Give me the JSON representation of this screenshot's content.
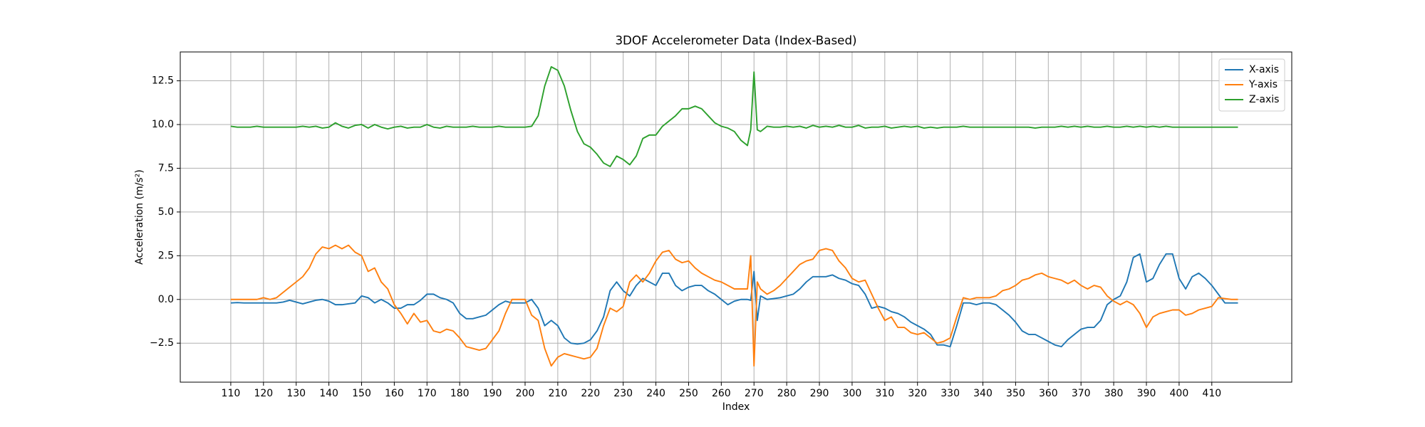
{
  "chart_data": {
    "type": "line",
    "title": "3DOF Accelerometer Data (Index-Based)",
    "x_label": "Index",
    "y_label": "Acceleration (m/s²)",
    "x": [
      110,
      112,
      114,
      116,
      118,
      120,
      122,
      124,
      126,
      128,
      130,
      132,
      134,
      136,
      138,
      140,
      142,
      144,
      146,
      148,
      150,
      152,
      154,
      156,
      158,
      160,
      162,
      164,
      166,
      168,
      170,
      172,
      174,
      176,
      178,
      180,
      182,
      184,
      186,
      188,
      190,
      192,
      194,
      196,
      198,
      200,
      202,
      204,
      206,
      208,
      210,
      212,
      214,
      216,
      218,
      220,
      222,
      224,
      226,
      228,
      230,
      232,
      234,
      236,
      238,
      240,
      242,
      244,
      246,
      248,
      250,
      252,
      254,
      256,
      258,
      260,
      262,
      264,
      266,
      268,
      269,
      270,
      271,
      272,
      274,
      276,
      278,
      280,
      282,
      284,
      286,
      288,
      290,
      292,
      294,
      296,
      298,
      300,
      302,
      304,
      306,
      308,
      310,
      312,
      314,
      316,
      318,
      320,
      322,
      324,
      326,
      328,
      330,
      332,
      334,
      336,
      338,
      340,
      342,
      344,
      346,
      348,
      350,
      352,
      354,
      356,
      358,
      360,
      362,
      364,
      366,
      368,
      370,
      372,
      374,
      376,
      378,
      380,
      382,
      384,
      386,
      388,
      390,
      392,
      394,
      396,
      398,
      400,
      402,
      404,
      406,
      408,
      410,
      412,
      414,
      416,
      418
    ],
    "series": [
      {
        "name": "X-axis",
        "color": "#1f77b4",
        "values": [
          -0.2,
          -0.18,
          -0.2,
          -0.2,
          -0.2,
          -0.2,
          -0.2,
          -0.2,
          -0.15,
          -0.05,
          -0.15,
          -0.25,
          -0.15,
          -0.05,
          0.0,
          -0.1,
          -0.3,
          -0.3,
          -0.25,
          -0.2,
          0.2,
          0.1,
          -0.2,
          0.0,
          -0.2,
          -0.5,
          -0.5,
          -0.3,
          -0.3,
          -0.05,
          0.3,
          0.3,
          0.1,
          0.0,
          -0.2,
          -0.8,
          -1.1,
          -1.1,
          -1.0,
          -0.9,
          -0.6,
          -0.3,
          -0.1,
          -0.2,
          -0.2,
          -0.2,
          0.0,
          -0.5,
          -1.5,
          -1.2,
          -1.5,
          -2.2,
          -2.5,
          -2.55,
          -2.5,
          -2.3,
          -1.8,
          -1.0,
          0.5,
          1.0,
          0.5,
          0.2,
          0.8,
          1.2,
          1.0,
          0.8,
          1.5,
          1.5,
          0.8,
          0.5,
          0.7,
          0.8,
          0.8,
          0.5,
          0.3,
          0.0,
          -0.3,
          -0.1,
          0.0,
          0.0,
          -0.05,
          1.6,
          -1.2,
          0.2,
          0.0,
          0.05,
          0.1,
          0.2,
          0.3,
          0.6,
          1.0,
          1.3,
          1.3,
          1.3,
          1.4,
          1.2,
          1.1,
          0.9,
          0.8,
          0.3,
          -0.5,
          -0.4,
          -0.5,
          -0.7,
          -0.8,
          -1.0,
          -1.3,
          -1.5,
          -1.7,
          -2.0,
          -2.6,
          -2.6,
          -2.7,
          -1.5,
          -0.2,
          -0.2,
          -0.3,
          -0.2,
          -0.2,
          -0.3,
          -0.6,
          -0.9,
          -1.3,
          -1.8,
          -2.0,
          -2.0,
          -2.2,
          -2.4,
          -2.6,
          -2.7,
          -2.3,
          -2.0,
          -1.7,
          -1.6,
          -1.6,
          -1.2,
          -0.3,
          0.0,
          0.2,
          1.0,
          2.4,
          2.6,
          1.0,
          1.2,
          2.0,
          2.6,
          2.6,
          1.2,
          0.6,
          1.3,
          1.5,
          1.2,
          0.8,
          0.3,
          -0.2,
          -0.2,
          -0.2
        ]
      },
      {
        "name": "Y-axis",
        "color": "#ff7f0e",
        "values": [
          0.0,
          0.0,
          0.0,
          0.0,
          0.0,
          0.1,
          0.0,
          0.1,
          0.4,
          0.7,
          1.0,
          1.3,
          1.8,
          2.6,
          3.0,
          2.9,
          3.1,
          2.9,
          3.1,
          2.7,
          2.5,
          1.6,
          1.8,
          1.0,
          0.6,
          -0.3,
          -0.8,
          -1.4,
          -0.8,
          -1.3,
          -1.2,
          -1.8,
          -1.9,
          -1.7,
          -1.8,
          -2.2,
          -2.7,
          -2.8,
          -2.9,
          -2.8,
          -2.3,
          -1.8,
          -0.8,
          0.0,
          0.0,
          0.0,
          -0.9,
          -1.2,
          -2.8,
          -3.8,
          -3.3,
          -3.1,
          -3.2,
          -3.3,
          -3.4,
          -3.3,
          -2.8,
          -1.5,
          -0.5,
          -0.7,
          -0.4,
          1.0,
          1.4,
          1.0,
          1.5,
          2.2,
          2.7,
          2.8,
          2.3,
          2.1,
          2.2,
          1.8,
          1.5,
          1.3,
          1.1,
          1.0,
          0.8,
          0.6,
          0.6,
          0.6,
          2.5,
          -3.8,
          1.0,
          0.6,
          0.3,
          0.5,
          0.8,
          1.2,
          1.6,
          2.0,
          2.2,
          2.3,
          2.8,
          2.9,
          2.8,
          2.2,
          1.8,
          1.2,
          1.0,
          1.1,
          0.3,
          -0.5,
          -1.2,
          -1.0,
          -1.6,
          -1.6,
          -1.9,
          -2.0,
          -1.9,
          -2.2,
          -2.5,
          -2.4,
          -2.2,
          -1.0,
          0.1,
          0.0,
          0.1,
          0.1,
          0.1,
          0.2,
          0.5,
          0.6,
          0.8,
          1.1,
          1.2,
          1.4,
          1.5,
          1.3,
          1.2,
          1.1,
          0.9,
          1.1,
          0.8,
          0.6,
          0.8,
          0.7,
          0.2,
          -0.1,
          -0.3,
          -0.1,
          -0.3,
          -0.8,
          -1.6,
          -1.0,
          -0.8,
          -0.7,
          -0.6,
          -0.6,
          -0.9,
          -0.8,
          -0.6,
          -0.5,
          -0.4,
          0.1,
          0.05,
          0.0,
          0.0
        ]
      },
      {
        "name": "Z-axis",
        "color": "#2ca02c",
        "values": [
          9.9,
          9.85,
          9.85,
          9.85,
          9.9,
          9.85,
          9.85,
          9.85,
          9.85,
          9.85,
          9.85,
          9.9,
          9.85,
          9.9,
          9.8,
          9.85,
          10.1,
          9.9,
          9.8,
          9.95,
          10.0,
          9.8,
          10.0,
          9.85,
          9.75,
          9.85,
          9.9,
          9.8,
          9.85,
          9.85,
          10.0,
          9.85,
          9.8,
          9.9,
          9.85,
          9.85,
          9.85,
          9.9,
          9.85,
          9.85,
          9.85,
          9.9,
          9.85,
          9.85,
          9.85,
          9.85,
          9.9,
          10.5,
          12.2,
          13.3,
          13.1,
          12.2,
          10.8,
          9.6,
          8.9,
          8.7,
          8.3,
          7.8,
          7.6,
          8.2,
          8.0,
          7.7,
          8.2,
          9.2,
          9.4,
          9.4,
          9.9,
          10.2,
          10.5,
          10.9,
          10.9,
          11.05,
          10.9,
          10.5,
          10.1,
          9.9,
          9.8,
          9.6,
          9.1,
          8.8,
          9.7,
          13.0,
          9.7,
          9.6,
          9.9,
          9.85,
          9.85,
          9.9,
          9.85,
          9.9,
          9.8,
          9.95,
          9.85,
          9.9,
          9.85,
          9.95,
          9.85,
          9.85,
          9.95,
          9.8,
          9.85,
          9.85,
          9.9,
          9.8,
          9.85,
          9.9,
          9.85,
          9.9,
          9.8,
          9.85,
          9.8,
          9.85,
          9.85,
          9.85,
          9.9,
          9.85,
          9.85,
          9.85,
          9.85,
          9.85,
          9.85,
          9.85,
          9.85,
          9.85,
          9.85,
          9.8,
          9.85,
          9.85,
          9.85,
          9.9,
          9.85,
          9.9,
          9.85,
          9.9,
          9.85,
          9.85,
          9.9,
          9.85,
          9.85,
          9.9,
          9.85,
          9.9,
          9.85,
          9.9,
          9.85,
          9.9,
          9.85,
          9.85,
          9.85,
          9.85,
          9.85,
          9.85,
          9.85,
          9.85,
          9.85,
          9.85,
          9.85
        ]
      }
    ],
    "xlim": [
      94.55,
      434.45
    ],
    "ylim": [
      -4.73,
      14.15
    ],
    "xticks": [
      110,
      120,
      130,
      140,
      150,
      160,
      170,
      180,
      190,
      200,
      210,
      220,
      230,
      240,
      250,
      260,
      270,
      280,
      290,
      300,
      310,
      320,
      330,
      340,
      350,
      360,
      370,
      380,
      390,
      400,
      410
    ],
    "yticks": [
      {
        "value": -2.5,
        "label": "−2.5"
      },
      {
        "value": 0,
        "label": "0.0"
      },
      {
        "value": 2.5,
        "label": "2.5"
      },
      {
        "value": 5,
        "label": "5.0"
      },
      {
        "value": 7.5,
        "label": "7.5"
      },
      {
        "value": 10,
        "label": "10.0"
      },
      {
        "value": 12.5,
        "label": "12.5"
      }
    ],
    "grid": true,
    "legend": "upper-right"
  }
}
